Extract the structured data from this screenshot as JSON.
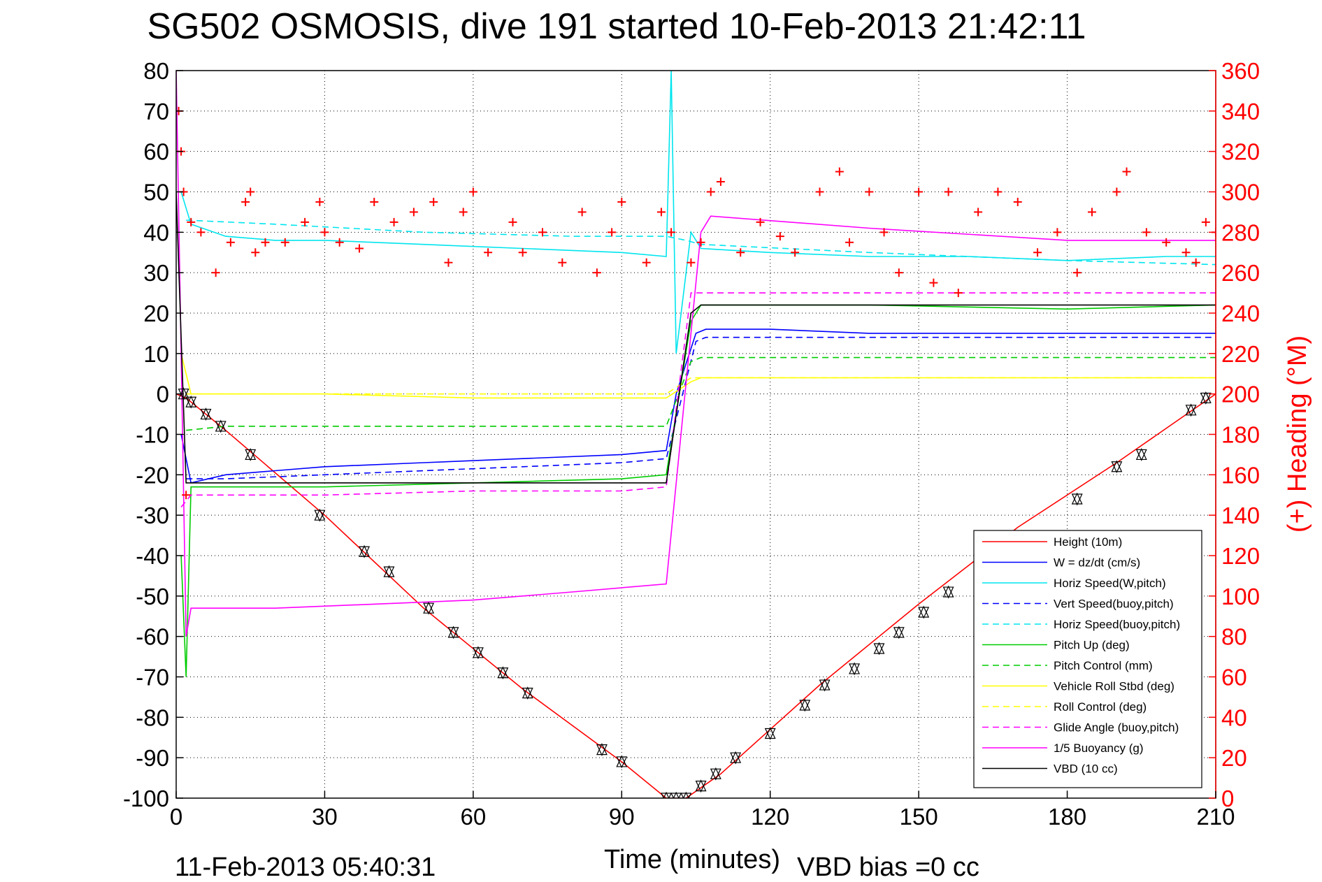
{
  "chart_data": {
    "type": "line",
    "title": "SG502 OSMOSIS, dive 191 started 10-Feb-2013 21:42:11",
    "xlabel": "Time (minutes)",
    "ylabel_right": "(+) Heading (°M)",
    "xlim": [
      0,
      210
    ],
    "ylim": [
      -100,
      80
    ],
    "ylim_right": [
      0,
      360
    ],
    "xticks": [
      0,
      30,
      60,
      90,
      120,
      150,
      180,
      210
    ],
    "xtick_labels": [
      "0",
      "30",
      "60",
      "90",
      "120",
      "150",
      "180",
      "210"
    ],
    "yticks": [
      80,
      70,
      60,
      50,
      40,
      30,
      20,
      10,
      0,
      -10,
      -20,
      -30,
      -40,
      -50,
      -60,
      -70,
      -80,
      -90,
      -100
    ],
    "ytick_labels": [
      "80",
      "70",
      "60",
      "50",
      "40",
      "30",
      "20",
      "10",
      "0",
      "-10",
      "-20",
      "-30",
      "-40",
      "-50",
      "-60",
      "-70",
      "-80",
      "-90",
      "-100"
    ],
    "yticks_right": [
      360,
      340,
      320,
      300,
      280,
      260,
      240,
      220,
      200,
      180,
      160,
      140,
      120,
      100,
      80,
      60,
      40,
      20,
      0
    ],
    "ytick_labels_right": [
      "360",
      "340",
      "320",
      "300",
      "280",
      "260",
      "240",
      "220",
      "200",
      "180",
      "160",
      "140",
      "120",
      "100",
      "80",
      "60",
      "40",
      "20",
      "0"
    ],
    "grid": true,
    "legend_position": "lower-right",
    "footer_left": "11-Feb-2013 05:40:31",
    "footer_right": "VBD bias =0 cc",
    "series": [
      {
        "name": "Height (10m)",
        "color": "#ff0000",
        "style": "solid",
        "x": [
          0,
          2,
          10,
          30,
          50,
          70,
          90,
          99,
          103,
          110,
          130,
          150,
          170,
          190,
          210
        ],
        "y": [
          0,
          -1,
          -9,
          -30,
          -53,
          -73,
          -91,
          -100,
          -100,
          -94,
          -72,
          -52,
          -33,
          -17,
          0
        ]
      },
      {
        "name": "W = dz/dt (cm/s)",
        "color": "#0000ff",
        "style": "solid",
        "x": [
          1,
          3,
          10,
          20,
          30,
          50,
          70,
          90,
          99,
          101,
          105,
          107,
          120,
          140,
          160,
          180,
          200,
          210
        ],
        "y": [
          -10,
          -22,
          -20,
          -19,
          -18,
          -17,
          -16,
          -15,
          -14,
          0,
          15,
          16,
          16,
          15,
          15,
          15,
          15,
          15
        ]
      },
      {
        "name": "Horiz Speed(W,pitch)",
        "color": "#00e5ee",
        "style": "solid",
        "x": [
          1,
          3,
          10,
          20,
          30,
          50,
          70,
          90,
          99,
          100,
          101,
          102,
          104,
          106,
          120,
          140,
          160,
          180,
          200,
          210
        ],
        "y": [
          50,
          42,
          39,
          38,
          38,
          37,
          36,
          35,
          34,
          80,
          10,
          20,
          40,
          36,
          35,
          34,
          34,
          33,
          34,
          34
        ]
      },
      {
        "name": "Vert Speed(buoy,pitch)",
        "color": "#0000ff",
        "style": "dashed",
        "x": [
          2,
          10,
          30,
          50,
          70,
          90,
          99,
          105,
          107,
          140,
          170,
          210
        ],
        "y": [
          -21,
          -21,
          -20,
          -19,
          -18,
          -17,
          -16,
          13,
          14,
          14,
          14,
          14
        ]
      },
      {
        "name": "Horiz Speed(buoy,pitch)",
        "color": "#00e5ee",
        "style": "dashed",
        "x": [
          2,
          20,
          50,
          80,
          99,
          103,
          106,
          140,
          180,
          210
        ],
        "y": [
          43,
          42,
          40,
          39,
          39,
          38,
          37,
          35,
          33,
          32
        ]
      },
      {
        "name": "Pitch Up (deg)",
        "color": "#00cc00",
        "style": "solid",
        "x": [
          1,
          2,
          3,
          10,
          30,
          60,
          90,
          99,
          104,
          106,
          140,
          180,
          210
        ],
        "y": [
          -40,
          -70,
          -23,
          -23,
          -23,
          -22,
          -21,
          -20,
          18,
          22,
          22,
          21,
          22
        ]
      },
      {
        "name": "Pitch Control (mm)",
        "color": "#00cc00",
        "style": "dashed",
        "x": [
          2,
          10,
          50,
          99,
          104,
          106,
          150,
          210
        ],
        "y": [
          -9,
          -8,
          -8,
          -8,
          8,
          9,
          9,
          9
        ]
      },
      {
        "name": "Vehicle Roll Stbd (deg)",
        "color": "#ffff00",
        "style": "solid",
        "x": [
          1,
          3,
          10,
          30,
          60,
          90,
          99,
          104,
          106,
          130,
          160,
          190,
          210
        ],
        "y": [
          10,
          0,
          0,
          0,
          -1,
          -1,
          -1,
          3,
          4,
          4,
          4,
          4,
          4
        ]
      },
      {
        "name": "Roll Control (deg)",
        "color": "#ffff00",
        "style": "dashed",
        "x": [
          2,
          50,
          99,
          104,
          210
        ],
        "y": [
          0,
          0,
          0,
          4,
          4
        ]
      },
      {
        "name": "Glide Angle (buoy,pitch)",
        "color": "#ff00ff",
        "style": "dashed",
        "x": [
          1,
          3,
          10,
          30,
          60,
          90,
          99,
          104,
          106,
          140,
          180,
          210
        ],
        "y": [
          -28,
          -25,
          -25,
          -25,
          -24,
          -24,
          -23,
          25,
          25,
          25,
          25,
          25
        ]
      },
      {
        "name": "1/5 Buoyancy (g)",
        "color": "#ff00ff",
        "style": "solid",
        "x": [
          0,
          2,
          3,
          20,
          40,
          60,
          80,
          99,
          106,
          108,
          140,
          180,
          210
        ],
        "y": [
          80,
          -60,
          -53,
          -53,
          -52,
          -51,
          -49,
          -47,
          40,
          44,
          41,
          38,
          38
        ]
      },
      {
        "name": "VBD (10 cc)",
        "color": "#000000",
        "style": "solid",
        "x": [
          0,
          2,
          10,
          50,
          99,
          104,
          106,
          140,
          180,
          210
        ],
        "y": [
          50,
          -22,
          -22,
          -22,
          -22,
          20,
          22,
          22,
          22,
          22
        ]
      }
    ],
    "heading_series": {
      "name": "(+) Heading (°M)",
      "color": "#ff0000",
      "marker": "+",
      "x": [
        0.5,
        1,
        1.5,
        2,
        3,
        5,
        8,
        11,
        14,
        15,
        16,
        18,
        22,
        26,
        29,
        30,
        33,
        37,
        40,
        44,
        48,
        52,
        55,
        58,
        60,
        63,
        68,
        70,
        74,
        78,
        82,
        85,
        88,
        90,
        95,
        98,
        100,
        104,
        106,
        108,
        110,
        114,
        118,
        122,
        125,
        130,
        134,
        136,
        140,
        143,
        146,
        150,
        153,
        156,
        158,
        162,
        166,
        170,
        174,
        178,
        182,
        185,
        190,
        192,
        196,
        200,
        204,
        206,
        208,
        210
      ],
      "y": [
        340,
        320,
        300,
        150,
        285,
        280,
        260,
        275,
        295,
        300,
        270,
        275,
        275,
        285,
        295,
        280,
        275,
        272,
        295,
        285,
        290,
        295,
        265,
        290,
        300,
        270,
        285,
        270,
        280,
        265,
        290,
        260,
        280,
        295,
        265,
        290,
        280,
        265,
        275,
        300,
        305,
        270,
        285,
        278,
        270,
        300,
        310,
        275,
        300,
        280,
        260,
        300,
        255,
        300,
        250,
        290,
        300,
        295,
        270,
        280,
        260,
        290,
        300,
        310,
        280,
        275,
        270,
        265,
        285,
        280
      ]
    },
    "vbd_markers": {
      "x": [
        1.5,
        3,
        6,
        9,
        15,
        29,
        38,
        43,
        51,
        56,
        61,
        66,
        71,
        86,
        90,
        99,
        101,
        103,
        106,
        109,
        113,
        120,
        127,
        131,
        137,
        142,
        146,
        151,
        156,
        182,
        190,
        195,
        205,
        208
      ],
      "y": [
        0,
        -2,
        -5,
        -8,
        -15,
        -30,
        -39,
        -44,
        -53,
        -59,
        -64,
        -69,
        -74,
        -88,
        -91,
        -100,
        -100,
        -100,
        -97,
        -94,
        -90,
        -84,
        -77,
        -72,
        -68,
        -63,
        -59,
        -54,
        -49,
        -26,
        -18,
        -15,
        -4,
        -1
      ]
    }
  }
}
